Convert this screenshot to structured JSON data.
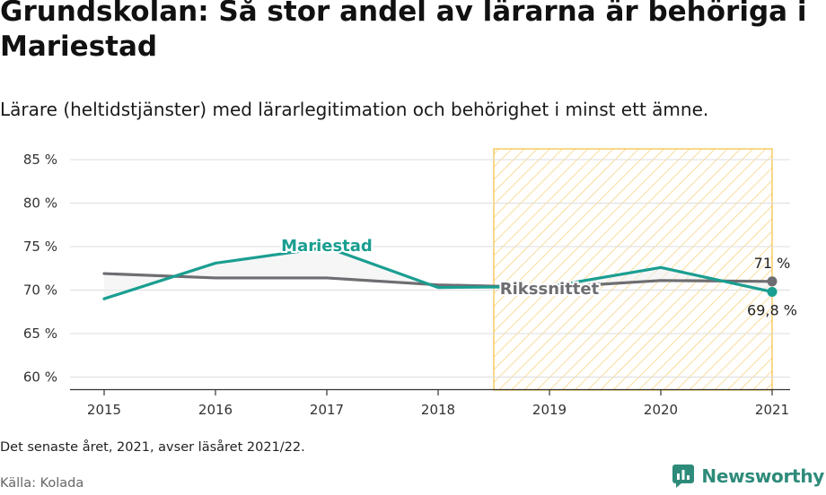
{
  "header": {
    "title": "Grundskolan: Så stor andel av lärarna är behöriga i Mariestad",
    "subtitle": "Lärare (heltidstjänster) med lärarlegitimation och behörighet i minst ett ämne."
  },
  "footer": {
    "note": "Det senaste året, 2021, avser läsåret 2021/22.",
    "source": "Källa: Kolada",
    "brand": "Newsworthy"
  },
  "colors": {
    "mariestad": "#1a9e91",
    "riksnittet": "#6e6e72",
    "highlight_stroke": "#f5c24c",
    "highlight_hatch": "#f7d27a",
    "grid": "#dddddd",
    "brand": "#2e8b7a"
  },
  "chart_data": {
    "type": "line",
    "x": [
      2015,
      2016,
      2017,
      2018,
      2019,
      2020,
      2021
    ],
    "ylim": [
      58,
      86
    ],
    "yticks": [
      60,
      65,
      70,
      75,
      80,
      85
    ],
    "ytick_labels": [
      "60 %",
      "65 %",
      "70 %",
      "75 %",
      "80 %",
      "85 %"
    ],
    "xtick_labels": [
      "2015",
      "2016",
      "2017",
      "2018",
      "2019",
      "2020",
      "2021"
    ],
    "highlight_range": [
      2018.5,
      2021
    ],
    "series": [
      {
        "name": "Mariestad",
        "color": "#1a9e91",
        "values": [
          69,
          73.1,
          74.9,
          70.3,
          70.4,
          72.6,
          69.8
        ]
      },
      {
        "name": "Rikssnittet",
        "color": "#6e6e72",
        "values": [
          71.9,
          71.4,
          71.4,
          70.6,
          70.3,
          71.1,
          71.0
        ]
      }
    ],
    "end_labels": {
      "Rikssnittet": "71 %",
      "Mariestad": "69,8 %"
    },
    "grid": true,
    "legend": "inline labels"
  }
}
